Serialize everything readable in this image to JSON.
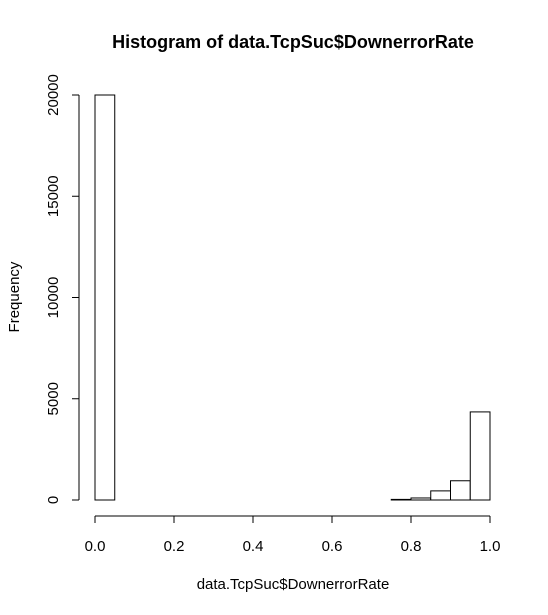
{
  "chart_data": {
    "type": "bar",
    "title": "Histogram of data.TcpSuc$DownerrorRate",
    "xlabel": "data.TcpSuc$DownerrorRate",
    "ylabel": "Frequency",
    "xlim": [
      0,
      1
    ],
    "ylim": [
      0,
      20000
    ],
    "x_ticks": [
      "0.0",
      "0.2",
      "0.4",
      "0.6",
      "0.8",
      "1.0"
    ],
    "y_ticks": [
      "0",
      "5000",
      "10000",
      "15000",
      "20000"
    ],
    "bins": [
      {
        "from": 0.0,
        "to": 0.05,
        "count": 20000
      },
      {
        "from": 0.05,
        "to": 0.1,
        "count": 0
      },
      {
        "from": 0.1,
        "to": 0.15,
        "count": 0
      },
      {
        "from": 0.15,
        "to": 0.2,
        "count": 0
      },
      {
        "from": 0.2,
        "to": 0.25,
        "count": 0
      },
      {
        "from": 0.25,
        "to": 0.3,
        "count": 0
      },
      {
        "from": 0.3,
        "to": 0.35,
        "count": 0
      },
      {
        "from": 0.35,
        "to": 0.4,
        "count": 0
      },
      {
        "from": 0.4,
        "to": 0.45,
        "count": 0
      },
      {
        "from": 0.45,
        "to": 0.5,
        "count": 0
      },
      {
        "from": 0.5,
        "to": 0.55,
        "count": 0
      },
      {
        "from": 0.55,
        "to": 0.6,
        "count": 0
      },
      {
        "from": 0.6,
        "to": 0.65,
        "count": 0
      },
      {
        "from": 0.65,
        "to": 0.7,
        "count": 0
      },
      {
        "from": 0.7,
        "to": 0.75,
        "count": 0
      },
      {
        "from": 0.75,
        "to": 0.8,
        "count": 30
      },
      {
        "from": 0.8,
        "to": 0.85,
        "count": 100
      },
      {
        "from": 0.85,
        "to": 0.9,
        "count": 450
      },
      {
        "from": 0.9,
        "to": 0.95,
        "count": 950
      },
      {
        "from": 0.95,
        "to": 1.0,
        "count": 4350
      }
    ],
    "grid": false,
    "colors": {
      "bar_fill": "#ffffff",
      "bar_stroke": "#000000"
    }
  }
}
